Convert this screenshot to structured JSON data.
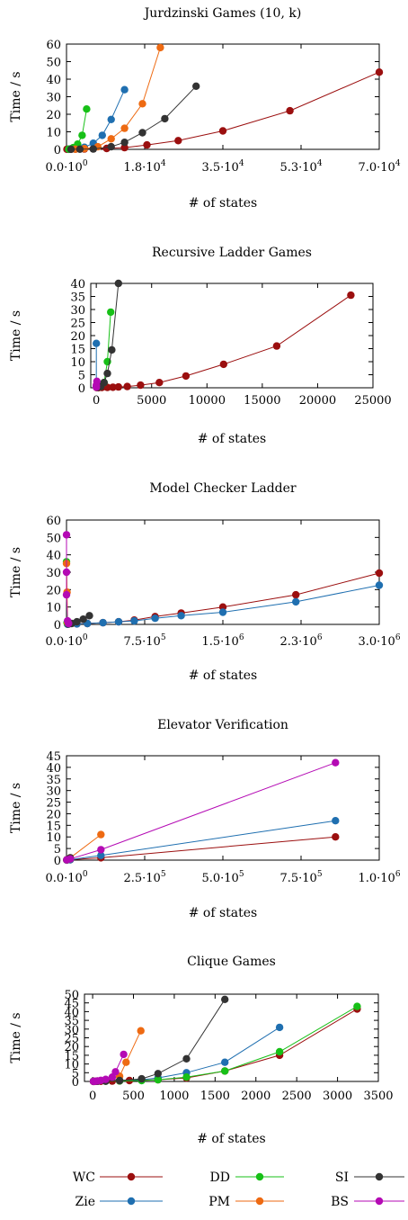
{
  "colors": {
    "WC": "#9b0f0f",
    "Zie": "#1f6fb0",
    "DD": "#17c017",
    "PM": "#ee6a12",
    "SI": "#333333",
    "BS": "#b40ab4"
  },
  "legend": {
    "entries": [
      {
        "key": "WC",
        "label": "WC"
      },
      {
        "key": "DD",
        "label": "DD"
      },
      {
        "key": "SI",
        "label": "SI"
      },
      {
        "key": "Zie",
        "label": "Zie"
      },
      {
        "key": "PM",
        "label": "PM"
      },
      {
        "key": "BS",
        "label": "BS"
      }
    ]
  },
  "chart_data": [
    {
      "type": "line",
      "title": "Jurdzinski Games (10, k)",
      "xlabel": "# of states",
      "ylabel": "Time / s",
      "xlim": [
        0,
        70000
      ],
      "ylim": [
        0,
        60
      ],
      "xticks": [
        0,
        17500,
        35000,
        52500,
        70000
      ],
      "xtick_labels": [
        "0.0·10^0",
        "1.8·10^4",
        "3.5·10^4",
        "5.3·10^4",
        "7.0·10^4"
      ],
      "yticks": [
        0,
        10,
        20,
        30,
        40,
        50,
        60
      ],
      "ytick_labels": [
        "0",
        "10",
        "20",
        "30",
        "40",
        "50",
        "60"
      ],
      "series": [
        {
          "name": "WC",
          "points": [
            [
              100,
              0.05
            ],
            [
              500,
              0.05
            ],
            [
              1000,
              0.1
            ],
            [
              2000,
              0.1
            ],
            [
              4000,
              0.2
            ],
            [
              6000,
              0.3
            ],
            [
              9000,
              0.5
            ],
            [
              13000,
              1
            ],
            [
              18000,
              2.5
            ],
            [
              25000,
              5
            ],
            [
              35000,
              10.5
            ],
            [
              50000,
              22
            ],
            [
              70000,
              44
            ]
          ]
        },
        {
          "name": "Zie",
          "points": [
            [
              500,
              0.1
            ],
            [
              1000,
              0.3
            ],
            [
              2000,
              0.6
            ],
            [
              4000,
              1.2
            ],
            [
              6000,
              3.5
            ],
            [
              8000,
              8
            ],
            [
              10000,
              17
            ],
            [
              13000,
              34
            ]
          ]
        },
        {
          "name": "DD",
          "points": [
            [
              500,
              0.1
            ],
            [
              1000,
              0.3
            ],
            [
              1500,
              1
            ],
            [
              2500,
              3
            ],
            [
              3500,
              8
            ],
            [
              4500,
              23
            ]
          ]
        },
        {
          "name": "PM",
          "points": [
            [
              2000,
              0.1
            ],
            [
              4000,
              0.4
            ],
            [
              7000,
              1.5
            ],
            [
              10000,
              6
            ],
            [
              13000,
              12
            ],
            [
              17000,
              26
            ],
            [
              21000,
              58
            ]
          ]
        },
        {
          "name": "SI",
          "points": [
            [
              1000,
              0.05
            ],
            [
              3000,
              0.1
            ],
            [
              6000,
              0.2
            ],
            [
              10000,
              1.5
            ],
            [
              13000,
              4
            ],
            [
              17000,
              9.5
            ],
            [
              22000,
              17.5
            ],
            [
              29000,
              36
            ]
          ]
        },
        {
          "name": "BS",
          "points": []
        }
      ]
    },
    {
      "type": "line",
      "title": "Recursive Ladder Games",
      "xlabel": "# of states",
      "ylabel": "Time / s",
      "xlim": [
        -500,
        25000
      ],
      "ylim": [
        0,
        40
      ],
      "xticks": [
        0,
        5000,
        10000,
        15000,
        20000,
        25000
      ],
      "xtick_labels": [
        "0",
        "5000",
        "10000",
        "15000",
        "20000",
        "25000"
      ],
      "yticks": [
        0,
        5,
        10,
        15,
        20,
        25,
        30,
        35,
        40
      ],
      "ytick_labels": [
        "0",
        "5",
        "10",
        "15",
        "20",
        "25",
        "30",
        "35",
        "40"
      ],
      "series": [
        {
          "name": "WC",
          "points": [
            [
              50,
              0.02
            ],
            [
              200,
              0.05
            ],
            [
              500,
              0.1
            ],
            [
              1000,
              0.15
            ],
            [
              1500,
              0.2
            ],
            [
              2000,
              0.3
            ],
            [
              2800,
              0.5
            ],
            [
              4000,
              1
            ],
            [
              5700,
              2
            ],
            [
              8100,
              4.5
            ],
            [
              11500,
              9
            ],
            [
              16300,
              16
            ],
            [
              23000,
              35.5
            ]
          ]
        },
        {
          "name": "Zie",
          "points": [
            [
              0,
              17
            ],
            [
              0,
              0.5
            ],
            [
              100,
              0.2
            ]
          ]
        },
        {
          "name": "DD",
          "points": [
            [
              50,
              0.1
            ],
            [
              300,
              0.5
            ],
            [
              700,
              2
            ],
            [
              1000,
              10
            ],
            [
              1300,
              29
            ]
          ]
        },
        {
          "name": "PM",
          "points": [
            [
              50,
              0.1
            ],
            [
              150,
              0.5
            ]
          ]
        },
        {
          "name": "SI",
          "points": [
            [
              100,
              0.1
            ],
            [
              400,
              0.5
            ],
            [
              700,
              2
            ],
            [
              1000,
              5.5
            ],
            [
              1400,
              14.5
            ],
            [
              2000,
              40
            ]
          ]
        },
        {
          "name": "BS",
          "points": [
            [
              0,
              0.2
            ],
            [
              0,
              1
            ],
            [
              50,
              2.5
            ]
          ]
        }
      ]
    },
    {
      "type": "line",
      "title": "Model Checker Ladder",
      "xlabel": "# of states",
      "ylabel": "Time / s",
      "xlim": [
        0,
        3000000
      ],
      "ylim": [
        0,
        60
      ],
      "xticks": [
        0,
        750000,
        1500000,
        2250000,
        3000000
      ],
      "xtick_labels": [
        "0.0·10^0",
        "7.5·10^5",
        "1.5·10^6",
        "2.3·10^6",
        "3.0·10^6"
      ],
      "yticks": [
        0,
        10,
        20,
        30,
        40,
        50,
        60
      ],
      "ytick_labels": [
        "0",
        "10",
        "20",
        "30",
        "40",
        "50",
        "60"
      ],
      "series": [
        {
          "name": "WC",
          "points": [
            [
              10000,
              0.1
            ],
            [
              100000,
              0.3
            ],
            [
              200000,
              0.5
            ],
            [
              350000,
              1
            ],
            [
              500000,
              1.5
            ],
            [
              650000,
              2.5
            ],
            [
              850000,
              4.5
            ],
            [
              1100000,
              6.5
            ],
            [
              1500000,
              10
            ],
            [
              2200000,
              17
            ],
            [
              3000000,
              29.5
            ]
          ]
        },
        {
          "name": "Zie",
          "points": [
            [
              10000,
              0.1
            ],
            [
              100000,
              0.3
            ],
            [
              200000,
              0.5
            ],
            [
              350000,
              1
            ],
            [
              500000,
              1.5
            ],
            [
              650000,
              2
            ],
            [
              850000,
              3.5
            ],
            [
              1100000,
              5
            ],
            [
              1500000,
              7
            ],
            [
              2200000,
              13
            ],
            [
              3000000,
              22.5
            ]
          ]
        },
        {
          "name": "DD",
          "points": [
            [
              0,
              36
            ],
            [
              5000,
              1
            ]
          ]
        },
        {
          "name": "PM",
          "points": [
            [
              0,
              35
            ],
            [
              5000,
              18.5
            ],
            [
              10000,
              1
            ]
          ]
        },
        {
          "name": "SI",
          "points": [
            [
              20000,
              0.2
            ],
            [
              50000,
              0.5
            ],
            [
              100000,
              1.5
            ],
            [
              160000,
              3
            ],
            [
              220000,
              5
            ]
          ]
        },
        {
          "name": "BS",
          "points": [
            [
              0,
              51.5
            ],
            [
              0,
              30
            ],
            [
              0,
              17
            ],
            [
              10000,
              2
            ],
            [
              20000,
              0.5
            ]
          ]
        }
      ]
    },
    {
      "type": "line",
      "title": "Elevator Verification",
      "xlabel": "# of states",
      "ylabel": "Time / s",
      "xlim": [
        0,
        1000000
      ],
      "ylim": [
        0,
        45
      ],
      "xticks": [
        0,
        250000,
        500000,
        750000,
        1000000
      ],
      "xtick_labels": [
        "0.0·10^0",
        "2.5·10^5",
        "5.0·10^5",
        "7.5·10^5",
        "1.0·10^6"
      ],
      "yticks": [
        0,
        5,
        10,
        15,
        20,
        25,
        30,
        35,
        40,
        45
      ],
      "ytick_labels": [
        "0",
        "5",
        "10",
        "15",
        "20",
        "25",
        "30",
        "35",
        "40",
        "45"
      ],
      "series": [
        {
          "name": "WC",
          "points": [
            [
              1000,
              0.05
            ],
            [
              12000,
              0.2
            ],
            [
              110000,
              1
            ],
            [
              860000,
              10
            ]
          ]
        },
        {
          "name": "Zie",
          "points": [
            [
              1000,
              0.05
            ],
            [
              12000,
              0.2
            ],
            [
              110000,
              2
            ],
            [
              860000,
              17
            ]
          ]
        },
        {
          "name": "DD",
          "points": [
            [
              1000,
              0.1
            ],
            [
              12000,
              0.5
            ]
          ]
        },
        {
          "name": "PM",
          "points": [
            [
              1000,
              0.1
            ],
            [
              12000,
              1
            ],
            [
              110000,
              11
            ]
          ]
        },
        {
          "name": "SI",
          "points": [
            [
              1000,
              0.1
            ],
            [
              12000,
              1
            ]
          ]
        },
        {
          "name": "BS",
          "points": [
            [
              1000,
              0.1
            ],
            [
              12000,
              0.5
            ],
            [
              110000,
              4.5
            ],
            [
              860000,
              42
            ]
          ]
        }
      ]
    },
    {
      "type": "line",
      "title": "Clique Games",
      "xlabel": "# of states",
      "ylabel": "Time / s",
      "xlim": [
        -100,
        3500
      ],
      "ylim": [
        0,
        50
      ],
      "xticks": [
        0,
        500,
        1000,
        1500,
        2000,
        2500,
        3000,
        3500
      ],
      "xtick_labels": [
        "0",
        "500",
        "1000",
        "1500",
        "2000",
        "2500",
        "3000",
        "3500"
      ],
      "yticks": [
        0,
        5,
        10,
        15,
        20,
        25,
        30,
        35,
        40,
        45,
        50
      ],
      "ytick_labels": [
        "0",
        "5",
        "10",
        "15",
        "20",
        "25",
        "30",
        "35",
        "40",
        "45",
        "50"
      ],
      "series": [
        {
          "name": "WC",
          "points": [
            [
              10,
              0.05
            ],
            [
              30,
              0.05
            ],
            [
              60,
              0.1
            ],
            [
              100,
              0.1
            ],
            [
              160,
              0.15
            ],
            [
              240,
              0.2
            ],
            [
              330,
              0.3
            ],
            [
              450,
              0.5
            ],
            [
              600,
              0.7
            ],
            [
              800,
              1
            ],
            [
              1150,
              2
            ],
            [
              1620,
              6
            ],
            [
              2290,
              15
            ],
            [
              3240,
              41.5
            ]
          ]
        },
        {
          "name": "Zie",
          "points": [
            [
              10,
              0.05
            ],
            [
              60,
              0.1
            ],
            [
              160,
              0.2
            ],
            [
              330,
              0.5
            ],
            [
              600,
              1
            ],
            [
              800,
              2
            ],
            [
              1150,
              5
            ],
            [
              1620,
              11
            ],
            [
              2290,
              31
            ]
          ]
        },
        {
          "name": "DD",
          "points": [
            [
              10,
              0.05
            ],
            [
              60,
              0.1
            ],
            [
              160,
              0.2
            ],
            [
              330,
              0.3
            ],
            [
              600,
              0.5
            ],
            [
              800,
              1
            ],
            [
              1150,
              2.5
            ],
            [
              1620,
              6
            ],
            [
              2290,
              17
            ],
            [
              3240,
              43
            ]
          ]
        },
        {
          "name": "PM",
          "points": [
            [
              10,
              0.05
            ],
            [
              60,
              0.2
            ],
            [
              160,
              0.8
            ],
            [
              330,
              3
            ],
            [
              410,
              11
            ],
            [
              590,
              29
            ]
          ]
        },
        {
          "name": "SI",
          "points": [
            [
              10,
              0.05
            ],
            [
              60,
              0.1
            ],
            [
              160,
              0.2
            ],
            [
              330,
              0.5
            ],
            [
              600,
              1.5
            ],
            [
              800,
              4.5
            ],
            [
              1150,
              13
            ],
            [
              1620,
              47
            ]
          ]
        },
        {
          "name": "BS",
          "points": [
            [
              10,
              0.05
            ],
            [
              30,
              0.1
            ],
            [
              60,
              0.3
            ],
            [
              100,
              0.6
            ],
            [
              160,
              1.2
            ],
            [
              240,
              2.5
            ],
            [
              280,
              5.5
            ],
            [
              380,
              15.5
            ]
          ]
        }
      ]
    }
  ]
}
